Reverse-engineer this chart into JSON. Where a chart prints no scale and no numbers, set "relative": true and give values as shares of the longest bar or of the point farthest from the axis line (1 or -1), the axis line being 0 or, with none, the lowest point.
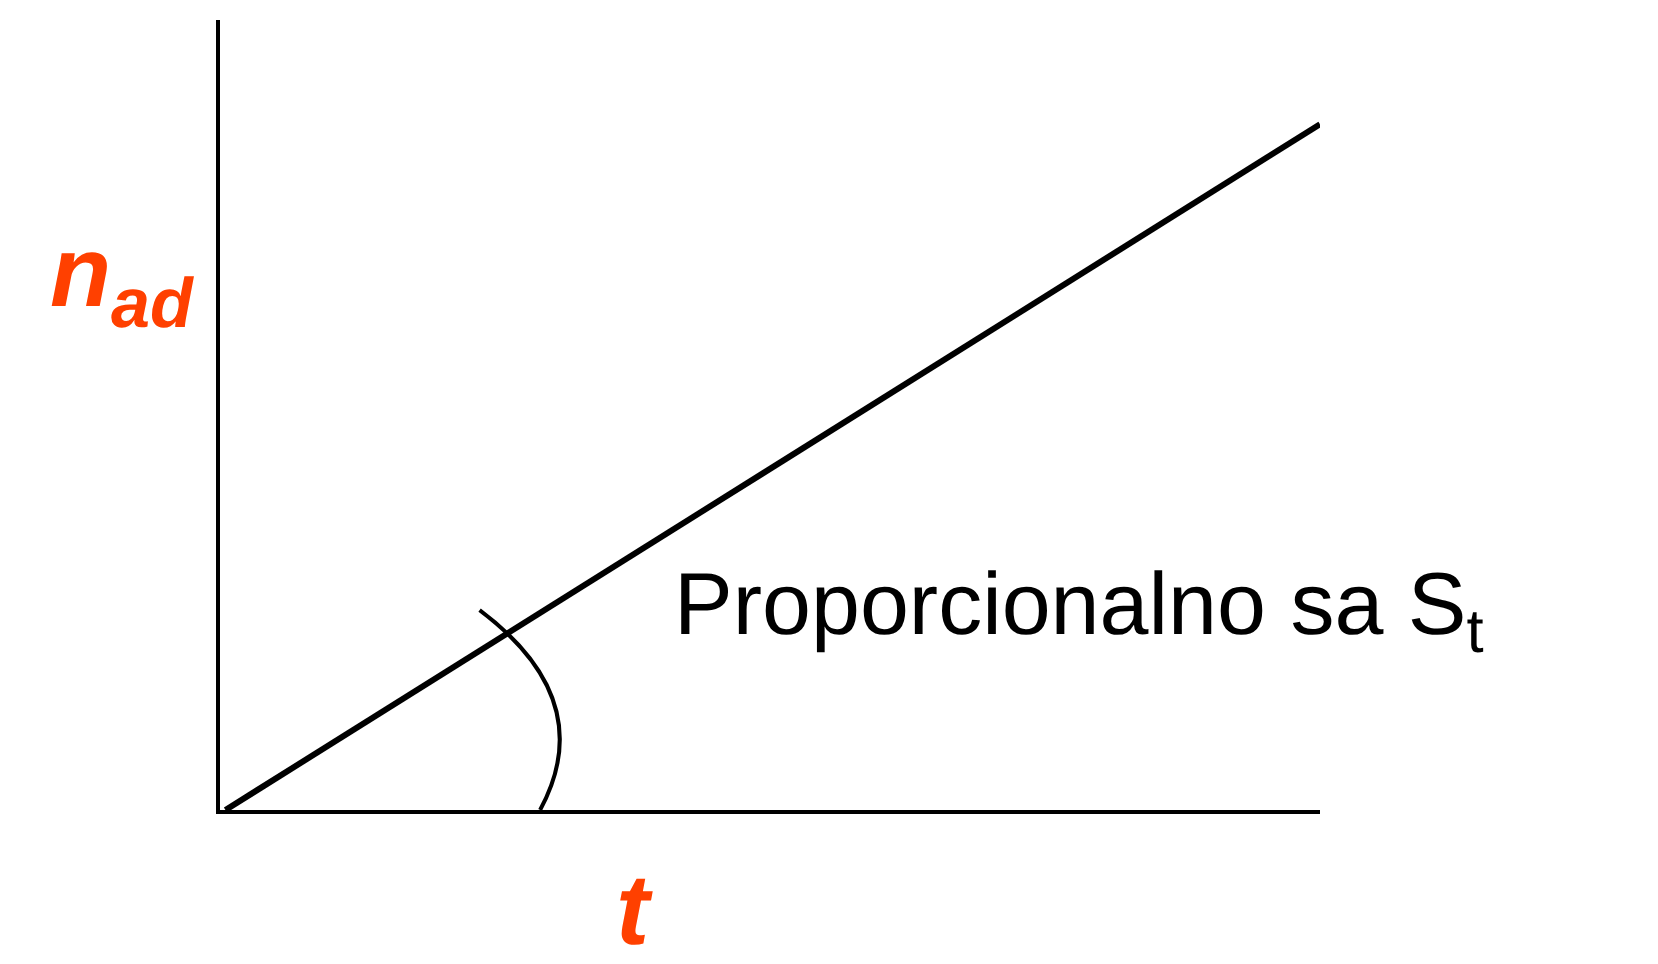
{
  "chart_data": {
    "type": "line",
    "relative": true,
    "categories": [
      null,
      null
    ],
    "series": [
      {
        "color": "#000000",
        "values": [
          0,
          1
        ]
      }
    ],
    "xlabel": "t",
    "ylabel": "n$_{ad}$",
    "annotations": [
      "Proporcionalno sa S$_{t}$"
    ],
    "marker": "none",
    "line_style": "solid",
    "grid": false
  }
}
